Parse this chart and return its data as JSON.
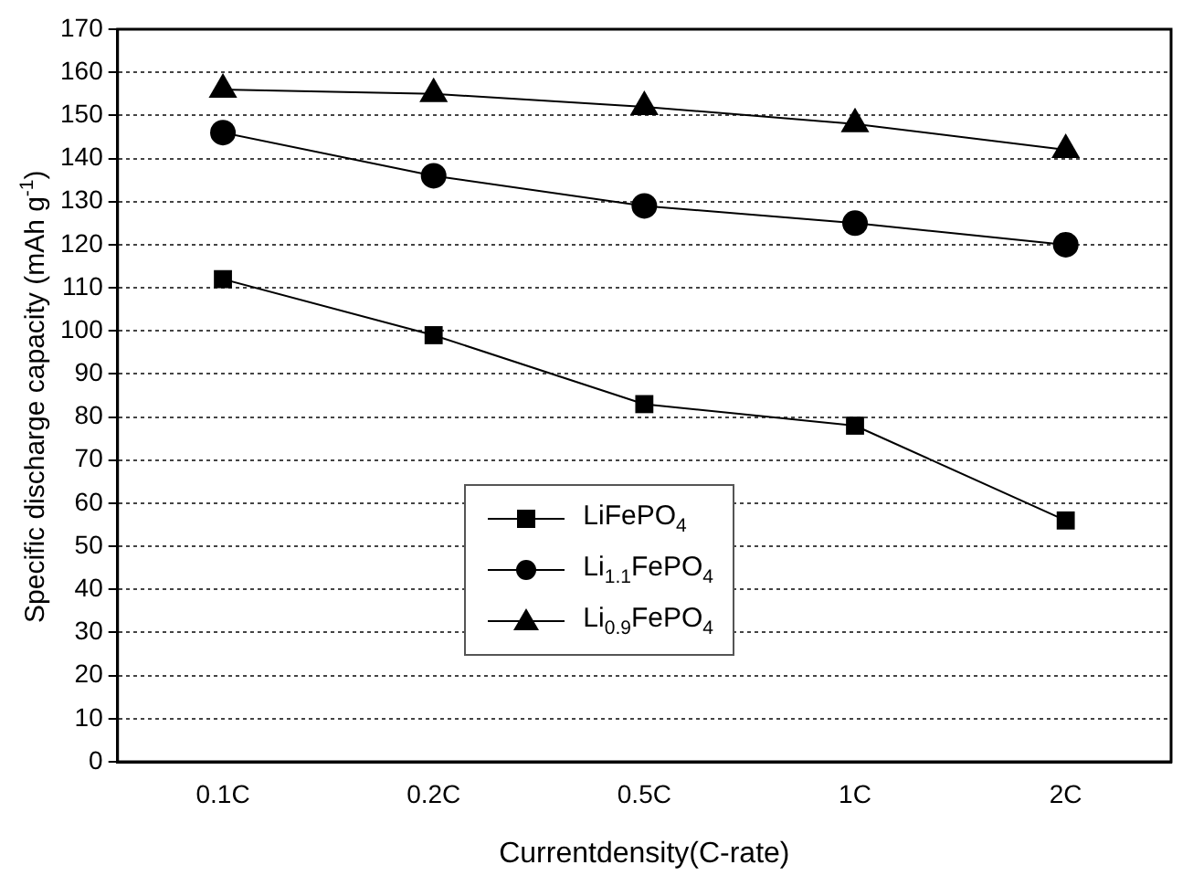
{
  "chart_data": {
    "type": "line",
    "xlabel": "Currentdensity(C-rate)",
    "ylabel": "Specific discharge capacity (mAh g$^{-1}$)",
    "categories": [
      "0.1C",
      "0.2C",
      "0.5C",
      "1C",
      "2C"
    ],
    "series": [
      {
        "name": "LiFePO$_{4}$",
        "color": "#000000",
        "marker": "square",
        "values": [
          112,
          99,
          83,
          78,
          56
        ]
      },
      {
        "name": "Li$_{1.1}$FePO$_{4}$",
        "color": "#000000",
        "marker": "circle",
        "values": [
          146,
          136,
          129,
          125,
          120
        ]
      },
      {
        "name": "Li$_{0.9}$FePO$_{4}$",
        "color": "#000000",
        "marker": "triangle",
        "values": [
          156,
          155,
          152,
          148,
          142
        ]
      }
    ],
    "ylim": [
      0,
      170
    ],
    "yticks": [
      0,
      10,
      20,
      30,
      40,
      50,
      60,
      70,
      80,
      90,
      100,
      110,
      120,
      130,
      140,
      150,
      160,
      170
    ],
    "grid": "y",
    "legend": "bottom",
    "line_style": "solid"
  }
}
